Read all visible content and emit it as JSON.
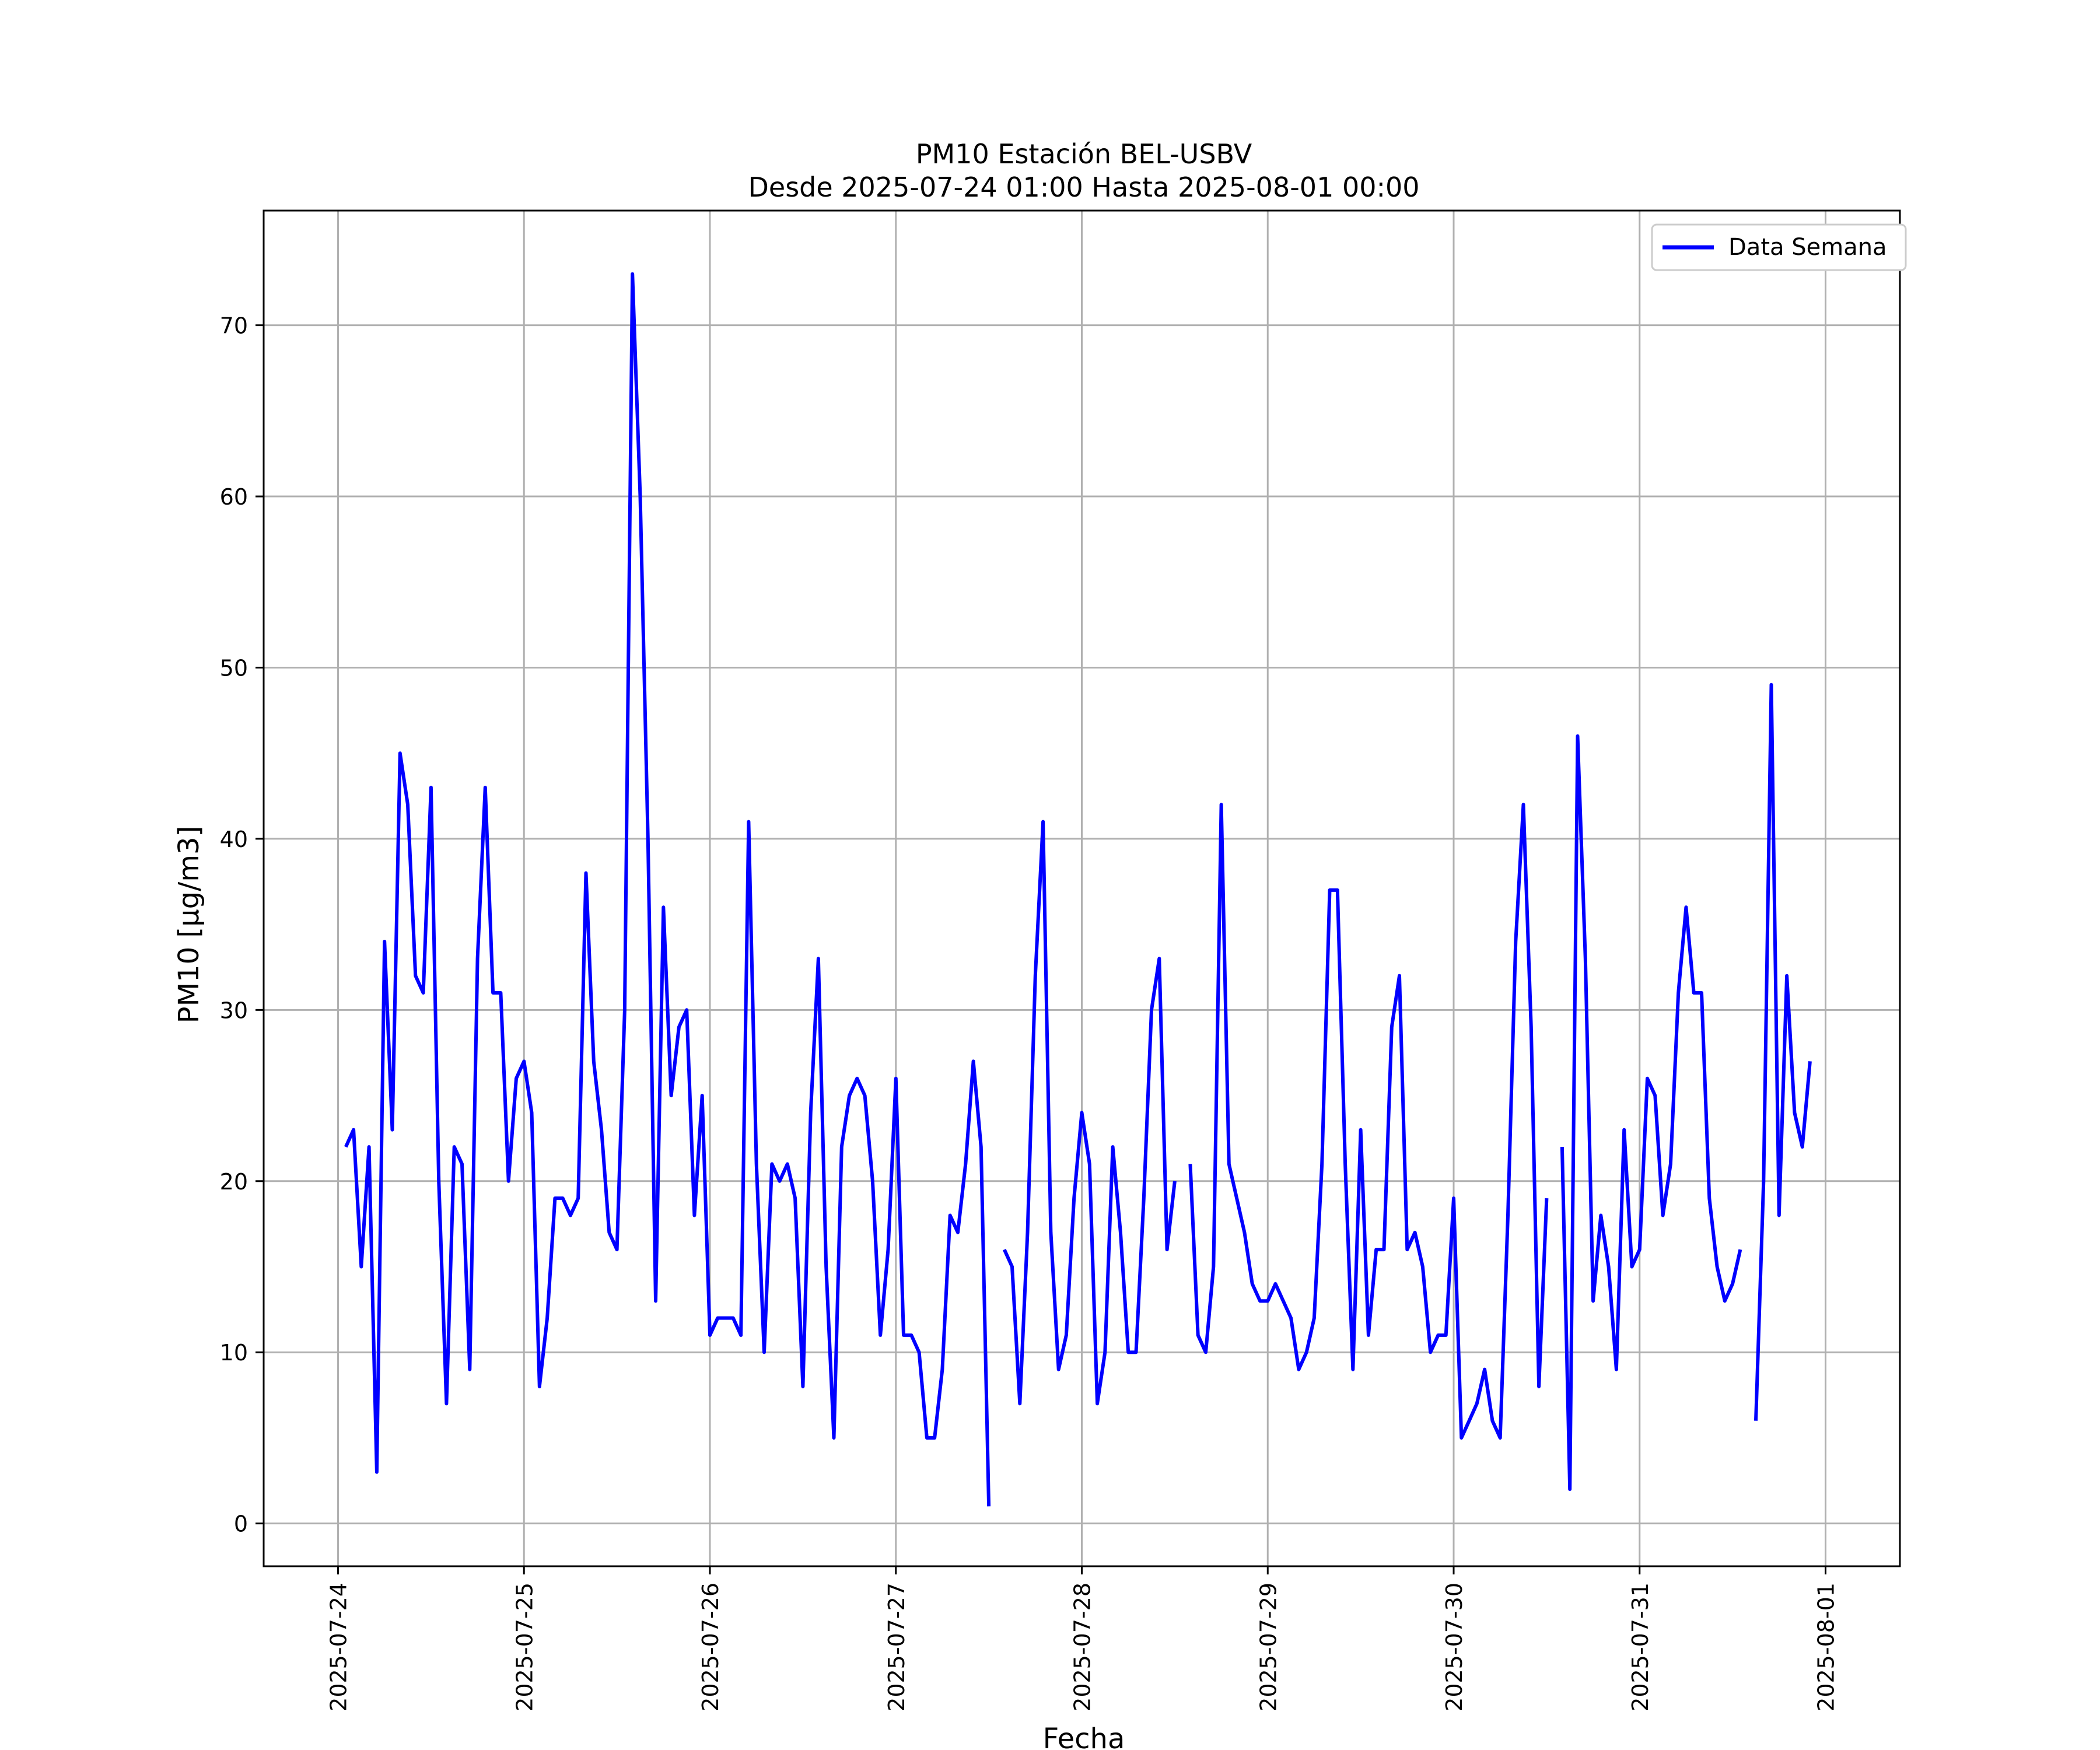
{
  "colors": {
    "series": "#0000ff",
    "grid": "#b0b0b0",
    "axes": "#000000"
  },
  "chart_data": {
    "type": "line",
    "title": "PM10 Estación BEL-USBV",
    "subtitle": "Desde 2025-07-24 01:00 Hasta 2025-08-01 00:00",
    "xlabel": "Fecha",
    "ylabel": "PM10 [µg/m3]",
    "xlim": [
      "2025-07-23 14:24",
      "2025-08-01 09:36"
    ],
    "ylim": [
      -2.5,
      76.7
    ],
    "grid": true,
    "legend_position": "upper right",
    "x_ticks": [
      "2025-07-24",
      "2025-07-25",
      "2025-07-26",
      "2025-07-27",
      "2025-07-28",
      "2025-07-29",
      "2025-07-30",
      "2025-07-31",
      "2025-08-01"
    ],
    "y_ticks": [
      0,
      10,
      20,
      30,
      40,
      50,
      60,
      70
    ],
    "series": [
      {
        "name": "Data Semana",
        "color": "#0000ff",
        "start": "2025-07-24 01:00",
        "interval_hours": 1,
        "values": [
          22,
          23,
          15,
          22,
          3,
          34,
          23,
          45,
          42,
          32,
          31,
          43,
          20,
          7,
          22,
          21,
          9,
          33,
          43,
          31,
          31,
          20,
          26,
          27,
          24,
          8,
          12,
          19,
          19,
          18,
          19,
          38,
          27,
          23,
          17,
          16,
          30,
          73,
          60,
          40,
          13,
          36,
          25,
          29,
          30,
          18,
          25,
          11,
          12,
          12,
          12,
          11,
          41,
          21,
          10,
          21,
          20,
          21,
          19,
          8,
          24,
          33,
          15,
          5,
          22,
          25,
          26,
          25,
          20,
          11,
          16,
          26,
          11,
          11,
          10,
          5,
          5,
          9,
          18,
          17,
          21,
          27,
          22,
          1,
          null,
          16,
          15,
          7,
          17,
          32,
          41,
          17,
          9,
          11,
          19,
          24,
          21,
          7,
          10,
          22,
          17,
          10,
          10,
          19,
          30,
          33,
          16,
          20,
          null,
          21,
          11,
          10,
          15,
          42,
          21,
          19,
          17,
          14,
          13,
          13,
          14,
          13,
          12,
          9,
          10,
          12,
          21,
          37,
          37,
          21,
          9,
          23,
          11,
          16,
          16,
          29,
          32,
          16,
          17,
          15,
          10,
          11,
          11,
          19,
          5,
          6,
          7,
          9,
          6,
          5,
          18,
          34,
          42,
          29,
          8,
          19,
          null,
          22,
          2,
          46,
          33,
          13,
          18,
          15,
          9,
          23,
          15,
          16,
          26,
          25,
          18,
          21,
          31,
          36,
          31,
          31,
          19,
          15,
          13,
          14,
          16,
          null,
          6,
          20,
          49,
          18,
          32,
          24,
          22,
          27
        ]
      }
    ]
  }
}
